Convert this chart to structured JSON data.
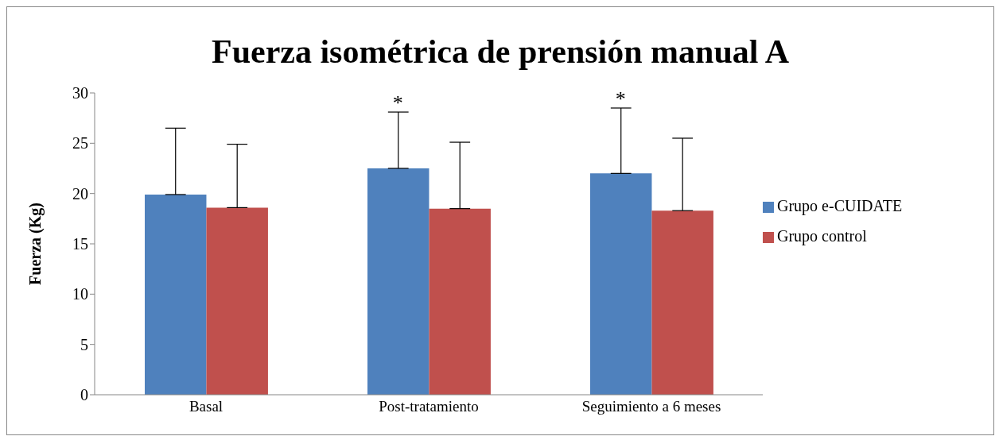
{
  "chart_data": {
    "type": "bar",
    "title": "Fuerza isométrica de prensión manual A",
    "ylabel": "Fuerza (Kg)",
    "categories": [
      "Basal",
      "Post-tratamiento",
      "Seguimiento a 6 meses"
    ],
    "series": [
      {
        "name": "Grupo e-CUIDATE",
        "color": "#4f81bd",
        "values": [
          19.9,
          22.5,
          22.0
        ],
        "errors": [
          [
            19.9,
            26.5
          ],
          [
            22.5,
            28.1
          ],
          [
            22.0,
            28.5
          ]
        ]
      },
      {
        "name": "Grupo control",
        "color": "#c0504d",
        "values": [
          18.6,
          18.5,
          18.3
        ],
        "errors": [
          [
            18.6,
            24.9
          ],
          [
            18.5,
            25.1
          ],
          [
            18.3,
            25.5
          ]
        ]
      }
    ],
    "ylim": [
      0,
      30
    ],
    "yticks": [
      0,
      5,
      10,
      15,
      20,
      25,
      30
    ],
    "grid": false,
    "legend": "right",
    "annotations": [
      "*",
      "*"
    ]
  }
}
